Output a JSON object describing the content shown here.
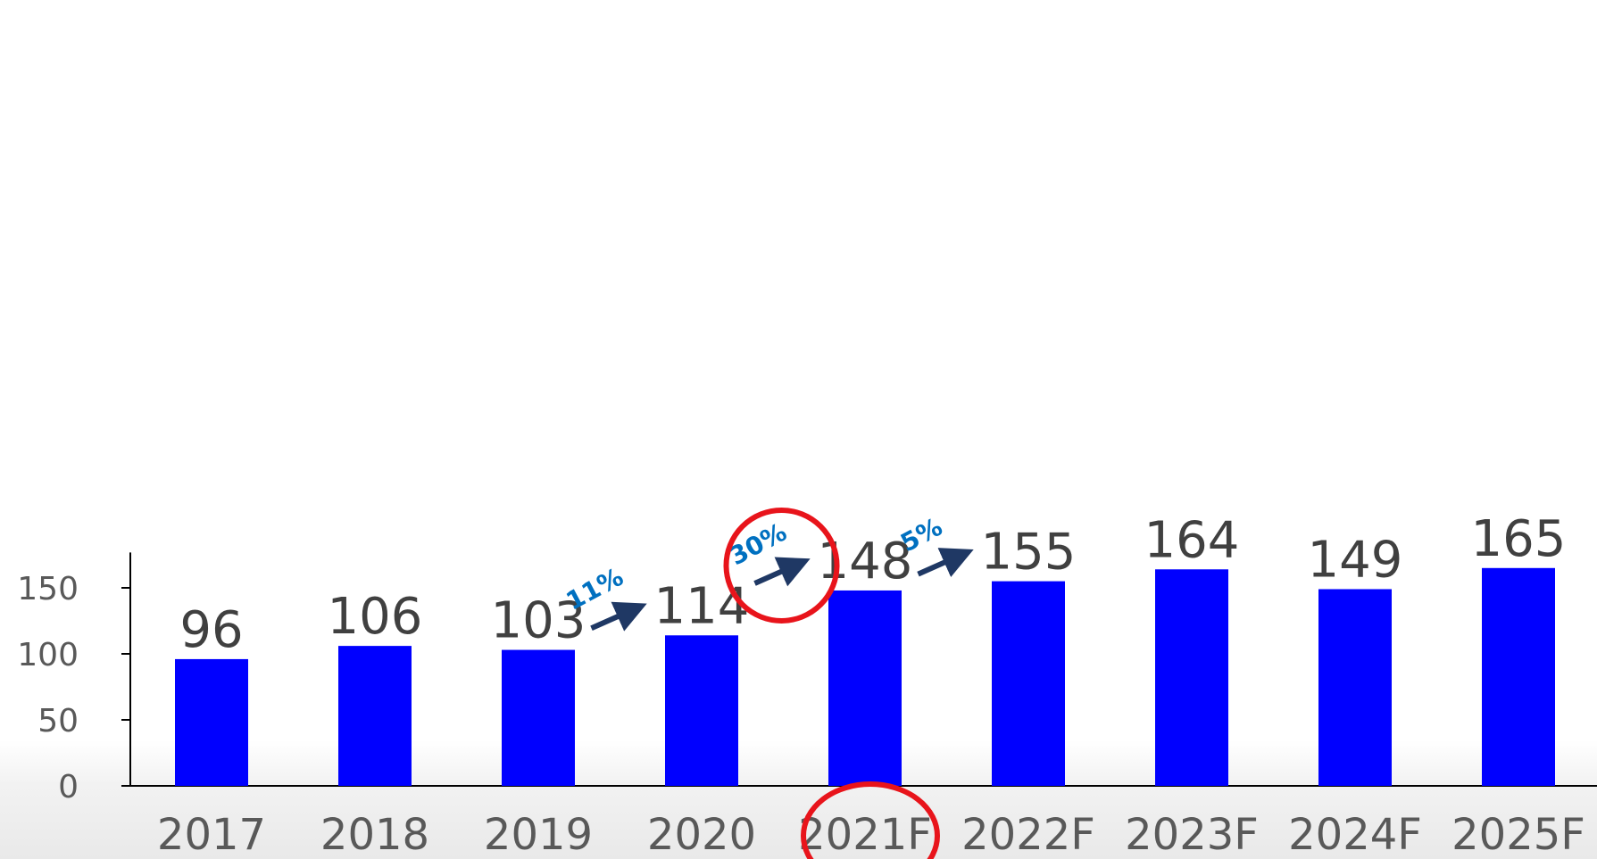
{
  "chart_data": {
    "type": "bar",
    "categories": [
      "2017",
      "2018",
      "2019",
      "2020",
      "2021F",
      "2022F",
      "2023F",
      "2024F",
      "2025F"
    ],
    "values": [
      96,
      106,
      103,
      114,
      148,
      155,
      164,
      149,
      165
    ],
    "value_labels": [
      "96",
      "106",
      "103",
      "114",
      "148",
      "155",
      "164",
      "149",
      "165"
    ],
    "yticks": [
      0,
      50,
      100,
      150
    ],
    "ytick_labels": [
      "0",
      "50",
      "100",
      "150"
    ],
    "ylim": [
      0,
      170
    ],
    "grid": false,
    "bar_color": "#0000ff",
    "title": "",
    "xlabel": "",
    "ylabel": "",
    "annotations": [
      {
        "text": "11%",
        "from_category": "2019",
        "to_category": "2020"
      },
      {
        "text": "30%",
        "from_category": "2020",
        "to_category": "2021F",
        "highlighted": true
      },
      {
        "text": "5%",
        "from_category": "2021F",
        "to_category": "2022F"
      }
    ],
    "highlighted_category": "2021F",
    "highlight_color": "#e8141b",
    "annotation_text_color": "#0070c0",
    "arrow_color": "#1f3864"
  }
}
